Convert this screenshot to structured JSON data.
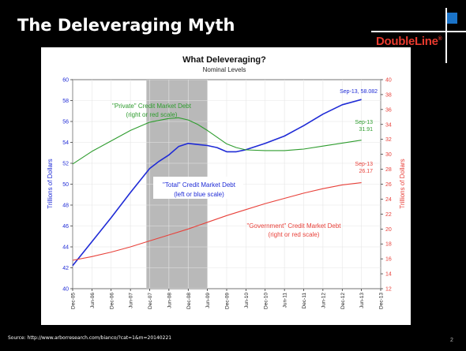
{
  "slide": {
    "title": "The Deleveraging Myth",
    "brand": "DoubleLine",
    "brand_mark": "®",
    "source": "Source: http://www.arborresearch.com/bianco/?cat=1&m=20140221",
    "page_number": "2"
  },
  "chart_data": {
    "type": "line",
    "title": "What Deleveraging?",
    "subtitle": "Nominal Levels",
    "ylabel_left": "Trillions of Dollars",
    "ylabel_right": "Trillions of Dollars",
    "ylim_left": [
      40,
      60
    ],
    "ylim_right": [
      12,
      40
    ],
    "yticks_left": [
      40,
      42,
      44,
      46,
      48,
      50,
      52,
      54,
      56,
      58,
      60
    ],
    "yticks_right": [
      12,
      14,
      16,
      18,
      20,
      22,
      24,
      26,
      28,
      30,
      32,
      34,
      36,
      38,
      40
    ],
    "xticks": [
      "Dec-05",
      "Jun-06",
      "Dec-06",
      "Jun-07",
      "Dec-07",
      "Jun-08",
      "Dec-08",
      "Jun-09",
      "Dec-09",
      "Jun-10",
      "Dec-10",
      "Jun-11",
      "Dec-11",
      "Jun-12",
      "Dec-12",
      "Jun-13",
      "Dec-13"
    ],
    "xlim": [
      0,
      16
    ],
    "recession_band": [
      3.83,
      7.0
    ],
    "series": [
      {
        "name": "Total",
        "axis": "left",
        "color": "#1f2bd6",
        "x": [
          0,
          1,
          2,
          3,
          4,
          4.5,
          5,
          5.5,
          6,
          6.5,
          7,
          7.5,
          8,
          8.5,
          9,
          10,
          11,
          12,
          13,
          14,
          15
        ],
        "y": [
          42.2,
          44.5,
          46.8,
          49.2,
          51.5,
          52.2,
          52.8,
          53.6,
          53.9,
          53.8,
          53.7,
          53.5,
          53.1,
          53.1,
          53.3,
          53.9,
          54.6,
          55.6,
          56.7,
          57.6,
          58.1
        ]
      },
      {
        "name": "Private",
        "axis": "right",
        "color": "#2e9c2e",
        "x": [
          0,
          1,
          2,
          3,
          4,
          5,
          5.5,
          6,
          6.5,
          7,
          7.5,
          8,
          8.5,
          9,
          10,
          11,
          12,
          13,
          14,
          15
        ],
        "y": [
          28.7,
          30.4,
          31.8,
          33.2,
          34.3,
          34.8,
          34.9,
          34.6,
          34.0,
          33.2,
          32.3,
          31.4,
          30.9,
          30.6,
          30.5,
          30.5,
          30.7,
          31.1,
          31.5,
          31.9
        ]
      },
      {
        "name": "Government",
        "axis": "right",
        "color": "#e8413a",
        "x": [
          0,
          1,
          2,
          3,
          4,
          5,
          6,
          7,
          8,
          9,
          10,
          11,
          12,
          13,
          14,
          15
        ],
        "y": [
          15.8,
          16.3,
          16.9,
          17.6,
          18.4,
          19.2,
          20.0,
          20.9,
          21.8,
          22.6,
          23.4,
          24.1,
          24.8,
          25.4,
          25.9,
          26.2
        ]
      }
    ],
    "annotations": [
      {
        "text": "\"Private\" Credit Market Debt",
        "color": "#2e9c2e"
      },
      {
        "text": "(right or red scale)",
        "color": "#2e9c2e"
      },
      {
        "text": "\"Total\" Credit Market Debt",
        "color": "#1f2bd6"
      },
      {
        "text": "(left or blue scale)",
        "color": "#1f2bd6"
      },
      {
        "text": "\"Government\" Credit Market Debt",
        "color": "#e8413a"
      },
      {
        "text": "(right or red scale)",
        "color": "#e8413a"
      },
      {
        "text": "Sep-13, 58.082",
        "color": "#1f2bd6"
      },
      {
        "text": "Sep-13",
        "color": "#2e9c2e"
      },
      {
        "text": "31.91",
        "color": "#2e9c2e"
      },
      {
        "text": "Sep-13",
        "color": "#e8413a"
      },
      {
        "text": "26.17",
        "color": "#e8413a"
      }
    ],
    "colors": {
      "left_axis": "#1f2bd6",
      "right_axis": "#e8413a",
      "band": "#b9b9b9"
    }
  }
}
